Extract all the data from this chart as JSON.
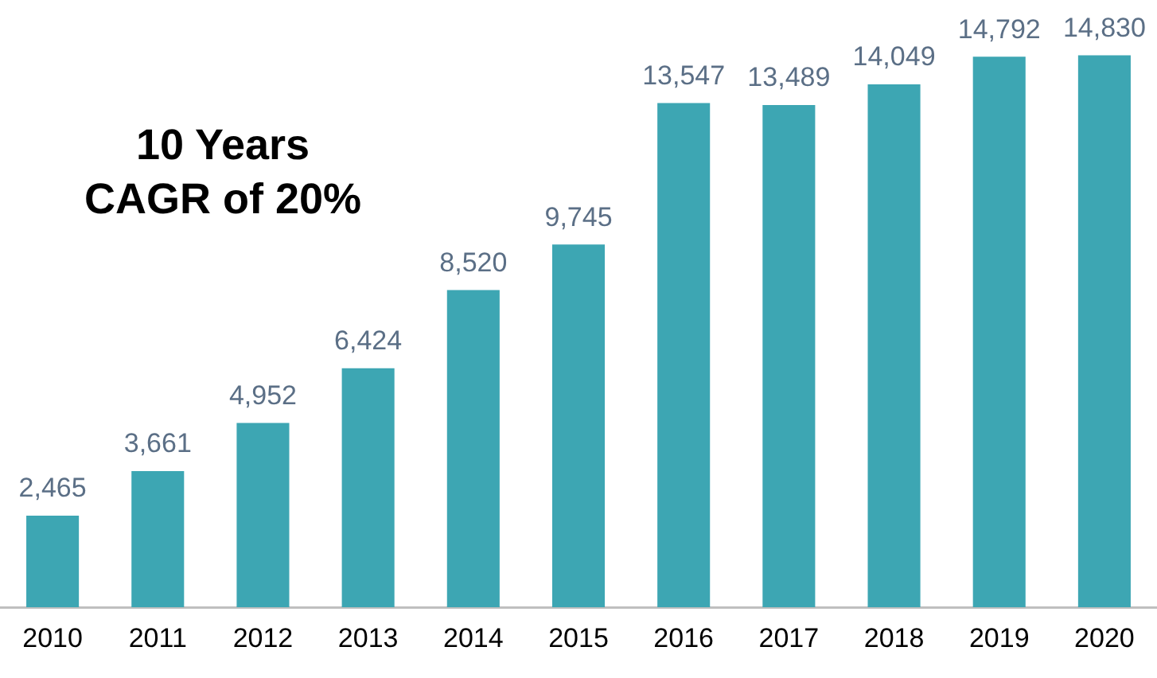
{
  "chart_data": {
    "type": "bar",
    "categories": [
      "2010",
      "2011",
      "2012",
      "2013",
      "2014",
      "2015",
      "2016",
      "2017",
      "2018",
      "2019",
      "2020"
    ],
    "values": [
      2465,
      3661,
      4952,
      6424,
      8520,
      9745,
      13547,
      13489,
      14049,
      14792,
      14830
    ],
    "value_labels": [
      "2,465",
      "3,661",
      "4,952",
      "6,424",
      "8,520",
      "9,745",
      "13,547",
      "13,489",
      "14,049",
      "14,792",
      "14,830"
    ],
    "color": "#3da6b3",
    "legend": false,
    "annotations": [
      "10 Years\nCAGR of 20%"
    ]
  }
}
